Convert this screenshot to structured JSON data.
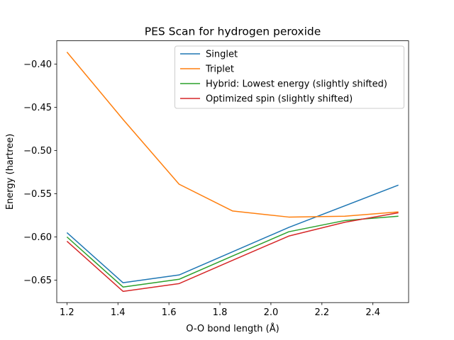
{
  "chart_data": {
    "type": "line",
    "title": "PES Scan for hydrogen peroxide",
    "xlabel": "O-O bond length (Å)",
    "ylabel": "Energy (hartree)",
    "xlim": [
      1.16,
      2.54
    ],
    "ylim": [
      -0.676,
      -0.373
    ],
    "xticks": [
      1.2,
      1.4,
      1.6,
      1.8,
      2.0,
      2.2,
      2.4
    ],
    "xtick_labels": [
      "1.2",
      "1.4",
      "1.6",
      "1.8",
      "2.0",
      "2.2",
      "2.4"
    ],
    "yticks": [
      -0.4,
      -0.45,
      -0.5,
      -0.55,
      -0.6,
      -0.65
    ],
    "ytick_labels": [
      "−0.40",
      "−0.45",
      "−0.50",
      "−0.55",
      "−0.60",
      "−0.65"
    ],
    "grid": false,
    "legend_position": "upper-right",
    "x": [
      1.2,
      1.42,
      1.64,
      1.85,
      2.07,
      2.29,
      2.5
    ],
    "series": [
      {
        "name": "Singlet",
        "color": "#1f77b4",
        "values": [
          -0.595,
          -0.653,
          -0.644,
          null,
          -0.589,
          null,
          -0.54
        ]
      },
      {
        "name": "Triplet",
        "color": "#ff7f0e",
        "values": [
          -0.386,
          -0.464,
          -0.539,
          -0.57,
          -0.577,
          -0.576,
          -0.571
        ]
      },
      {
        "name": "Hybrid: Lowest energy (slightly shifted)",
        "color": "#2ca02c",
        "values": [
          -0.6,
          -0.658,
          -0.649,
          -0.622,
          -0.594,
          -0.581,
          -0.576
        ]
      },
      {
        "name": "Optimized spin (slightly shifted)",
        "color": "#d62728",
        "values": [
          -0.605,
          -0.663,
          -0.654,
          -0.627,
          -0.599,
          -0.583,
          -0.572
        ]
      }
    ]
  }
}
